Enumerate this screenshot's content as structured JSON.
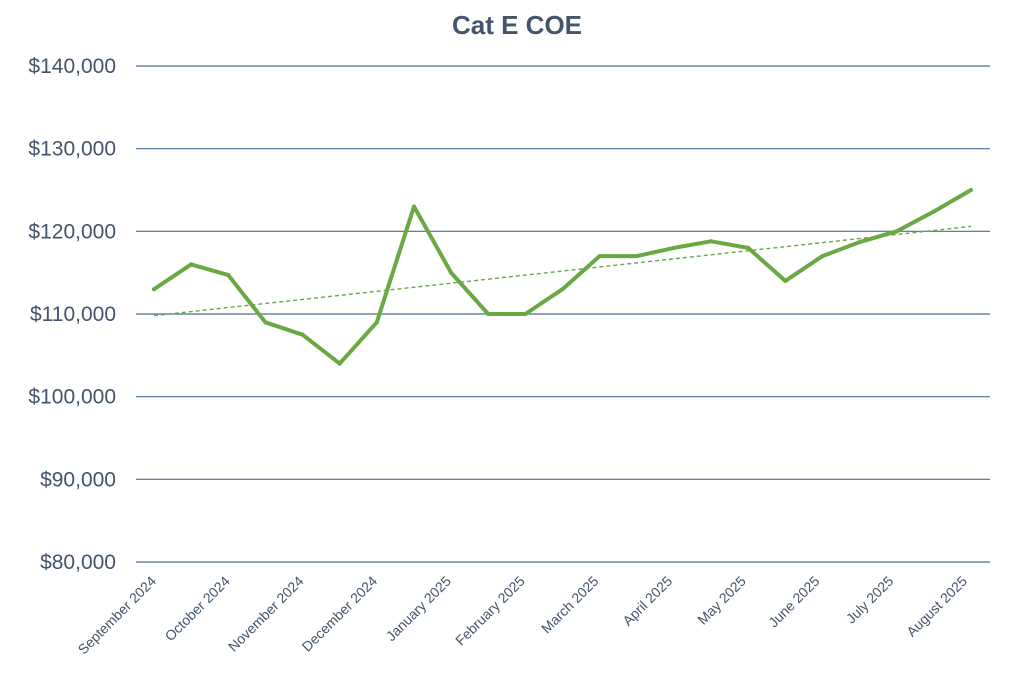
{
  "chart_data": {
    "type": "line",
    "title": "Cat E COE",
    "xlabel": "",
    "ylabel": "",
    "ylim": [
      80000,
      140000
    ],
    "yticks": [
      80000,
      90000,
      100000,
      110000,
      120000,
      130000,
      140000
    ],
    "ytick_labels": [
      "$80,000",
      "$90,000",
      "$100,000",
      "$110,000",
      "$120,000",
      "$130,000",
      "$140,000"
    ],
    "x_tick_labels": [
      "September 2024",
      "October 2024",
      "November 2024",
      "December 2024",
      "January 2025",
      "February 2025",
      "March 2025",
      "April 2025",
      "May 2025",
      "June 2025",
      "July 2025",
      "August 2025"
    ],
    "grid": true,
    "series": [
      {
        "values": [
          113000,
          116000,
          114700,
          109000,
          107500,
          104000,
          109000,
          123000,
          115000,
          110000,
          110000,
          113000,
          117000,
          117000,
          118000,
          118800,
          118000,
          114000,
          117000,
          118700,
          120000,
          122400,
          125000
        ],
        "color": "#6aa843"
      }
    ],
    "trendline": {
      "style": "dashed",
      "start_value": 109800,
      "end_value": 120600,
      "color": "#6aa843"
    },
    "colors": {
      "title": "#44546a",
      "axis_text": "#44546a",
      "grid": "#4a6b9a"
    }
  }
}
